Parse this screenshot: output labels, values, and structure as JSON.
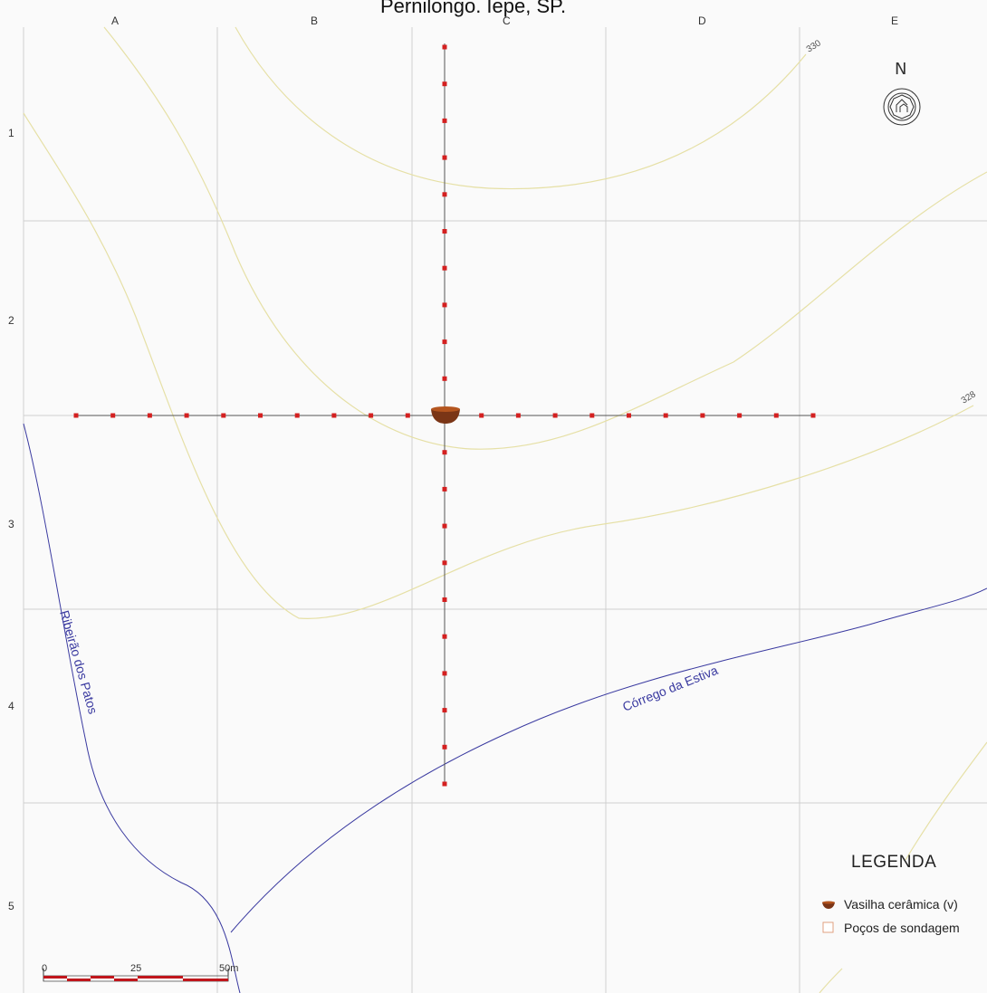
{
  "title": "Pernilongo. Iepe, SP.",
  "grid": {
    "columns": [
      "A",
      "B",
      "C",
      "D",
      "E"
    ],
    "rows": [
      "1",
      "2",
      "3",
      "4",
      "5"
    ]
  },
  "contours": [
    {
      "label": "330"
    },
    {
      "label": "328"
    }
  ],
  "streams": [
    {
      "name": "Ribeirão dos Patos"
    },
    {
      "name": "Córrego da Estiva"
    }
  ],
  "north_arrow": {
    "letter": "N",
    "icon": "compass-rose-icon"
  },
  "legend": {
    "title": "LEGENDA",
    "items": [
      {
        "label": "Vasilha cerâmica (v)",
        "icon": "ceramic-vessel-icon",
        "color": "#7a3516"
      },
      {
        "label": "Poços de sondagem",
        "icon": "test-pit-square-icon",
        "color": "#e0a080"
      }
    ]
  },
  "scale_bar": {
    "labels": [
      "0",
      "25",
      "50m"
    ]
  },
  "colors": {
    "grid": "#d0d0d0",
    "contour": "#e6e0a6",
    "stream": "#3a3aa0",
    "test_pit": "#d42020",
    "transect": "#555555",
    "scale_bar": "#c0161c"
  }
}
